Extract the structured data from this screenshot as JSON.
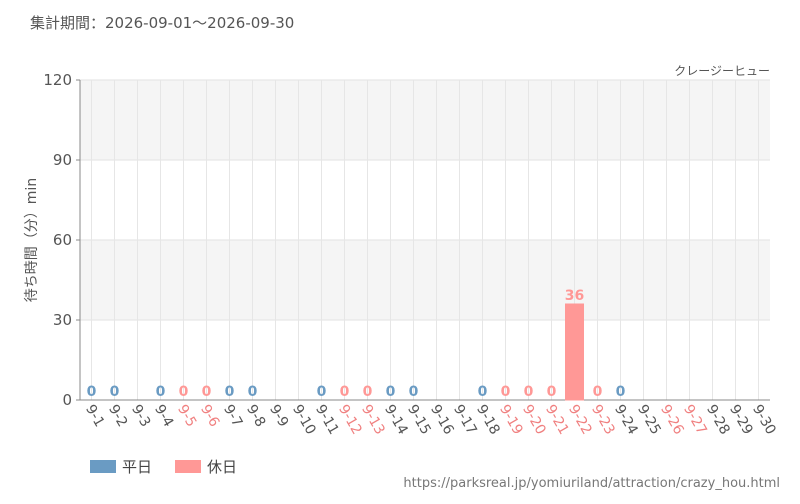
{
  "period": "集計期間：2026-09-01～2026-09-30",
  "source": "https://parksreal.jp/yomiuriland/attraction/crazy_hou.html",
  "chart_data": {
    "type": "bar",
    "subtitle": "クレージーヒュー",
    "y_label": "待ち時間（分）min",
    "categories": [
      "9-1",
      "9-2",
      "9-3",
      "9-4",
      "9-5",
      "9-6",
      "9-7",
      "9-8",
      "9-9",
      "9-10",
      "9-11",
      "9-12",
      "9-13",
      "9-14",
      "9-15",
      "9-16",
      "9-17",
      "9-18",
      "9-19",
      "9-20",
      "9-21",
      "9-22",
      "9-23",
      "9-24",
      "9-25",
      "9-26",
      "9-27",
      "9-28",
      "9-29",
      "9-30"
    ],
    "category_colors": [
      "#555",
      "#555",
      "#555",
      "#555",
      "#f08080",
      "#f08080",
      "#555",
      "#555",
      "#555",
      "#555",
      "#555",
      "#f08080",
      "#f08080",
      "#555",
      "#555",
      "#555",
      "#555",
      "#555",
      "#f08080",
      "#f08080",
      "#f08080",
      "#f08080",
      "#f08080",
      "#555",
      "#555",
      "#f08080",
      "#f08080",
      "#555",
      "#555",
      "#555"
    ],
    "series": [
      {
        "name": "平日",
        "color": "#6a9bc3",
        "values": [
          0,
          0,
          null,
          0,
          null,
          null,
          0,
          0,
          null,
          null,
          0,
          null,
          null,
          0,
          0,
          null,
          null,
          0,
          null,
          null,
          null,
          null,
          null,
          0,
          null,
          null,
          null,
          null,
          null,
          null
        ]
      },
      {
        "name": "休日",
        "color": "#ff9896",
        "values": [
          null,
          null,
          null,
          null,
          0,
          0,
          null,
          null,
          null,
          null,
          null,
          0,
          0,
          null,
          null,
          null,
          null,
          null,
          0,
          0,
          0,
          36,
          0,
          null,
          null,
          null,
          null,
          null,
          null,
          null
        ]
      }
    ],
    "ylim": [
      0,
      120
    ],
    "yticks": [
      0,
      30,
      60,
      90,
      120
    ],
    "grid": true
  }
}
